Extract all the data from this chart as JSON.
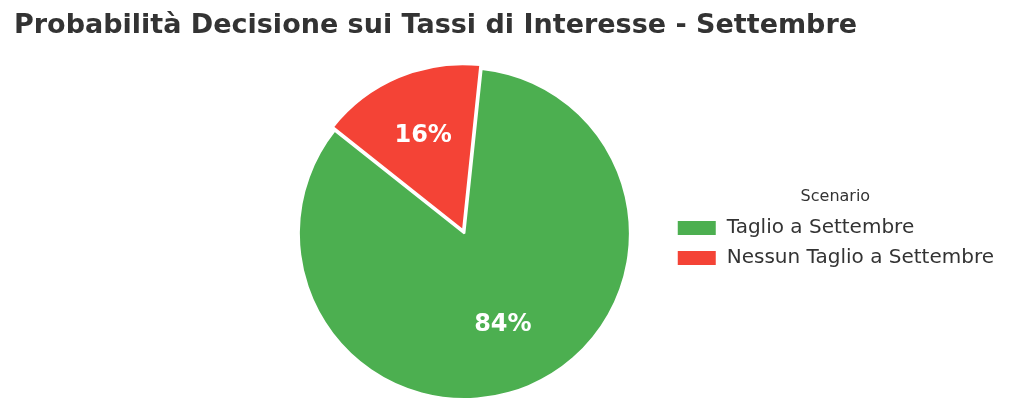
{
  "chart_data": {
    "type": "pie",
    "title": "Probabilità Decisione sui Tassi di Interesse - Settembre",
    "legend_title": "Scenario",
    "legend": "right",
    "categories": [
      "Taglio a Settembre",
      "Nessun Taglio a Settembre"
    ],
    "values": [
      84,
      16
    ],
    "colors": [
      "#4caf50",
      "#f44336"
    ],
    "value_labels": [
      "84%",
      "16%"
    ]
  }
}
